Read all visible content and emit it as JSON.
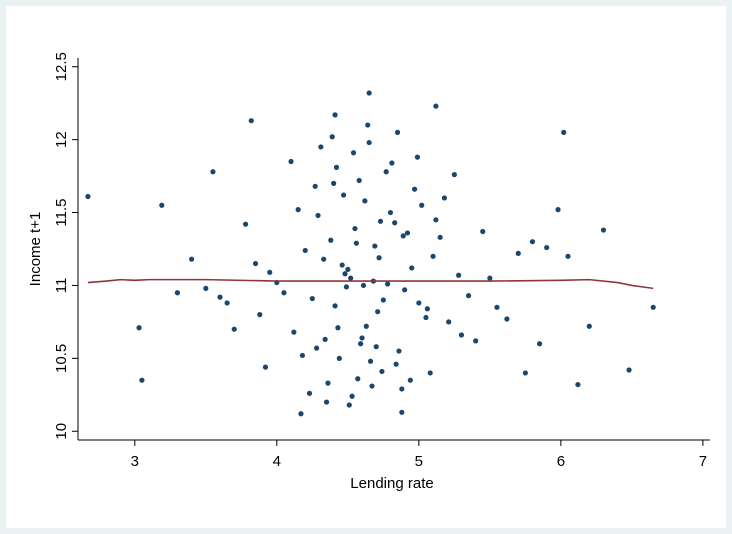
{
  "chart_data": {
    "type": "scatter",
    "xlabel": "Lending rate",
    "ylabel": "Income t+1",
    "xlim": [
      2.6,
      7.05
    ],
    "ylim": [
      9.94,
      12.56
    ],
    "xticks": [
      3,
      4,
      5,
      6,
      7
    ],
    "yticks": [
      10,
      10.5,
      11,
      11.5,
      12,
      12.5
    ],
    "series": [
      {
        "color": "#1a476f",
        "x": [
          4.52,
          4.71,
          4.38,
          4.95,
          4.6,
          4.83,
          4.25,
          5.1,
          4.47,
          4.66,
          4.9,
          4.33,
          5.21,
          4.55,
          4.78,
          4.12,
          5.02,
          4.41,
          4.69,
          4.86,
          3.95,
          5.35,
          4.58,
          4.74,
          4.29,
          5.15,
          4.63,
          4.49,
          4.97,
          4.2,
          5.4,
          4.36,
          4.81,
          4.05,
          5.28,
          4.54,
          4.7,
          3.85,
          5.55,
          4.44,
          4.92,
          4.15,
          5.08,
          4.61,
          4.77,
          3.7,
          5.7,
          4.31,
          4.88,
          4.5,
          5.0,
          4.4,
          4.65,
          3.6,
          5.8,
          4.23,
          5.18,
          4.57,
          4.73,
          4.1,
          5.3,
          4.46,
          4.84,
          3.78,
          5.62,
          4.35,
          4.99,
          4.59,
          4.68,
          3.5,
          5.9,
          4.27,
          5.05,
          4.53,
          4.8,
          4.0,
          5.45,
          4.39,
          4.94,
          3.88,
          4.62,
          4.48,
          4.75,
          4.34,
          5.12,
          4.56,
          4.85,
          4.18,
          5.25,
          4.43,
          4.72,
          3.92,
          5.5,
          4.64,
          4.51,
          4.89,
          4.28,
          5.06,
          4.67,
          4.42,
          2.67,
          3.05,
          3.03,
          3.19,
          6.3,
          6.48,
          6.65,
          6.12,
          4.65,
          5.12,
          4.41,
          3.82,
          6.02,
          4.88,
          4.17,
          3.4,
          3.3,
          5.98,
          6.2,
          5.85,
          3.55,
          3.65,
          5.75,
          6.05
        ],
        "values": [
          11.05,
          10.82,
          11.31,
          11.12,
          10.64,
          11.43,
          10.91,
          11.2,
          11.62,
          10.48,
          10.97,
          11.18,
          10.75,
          11.39,
          11.01,
          10.68,
          11.55,
          10.86,
          11.27,
          10.55,
          11.09,
          10.93,
          11.72,
          10.41,
          11.48,
          11.33,
          10.72,
          10.99,
          11.66,
          11.24,
          10.62,
          10.33,
          11.84,
          10.95,
          11.07,
          11.91,
          10.58,
          11.15,
          10.85,
          10.5,
          11.36,
          11.52,
          10.4,
          11.0,
          11.78,
          10.7,
          11.22,
          11.95,
          10.29,
          11.11,
          10.88,
          11.7,
          11.98,
          10.92,
          11.3,
          10.26,
          11.6,
          10.36,
          11.44,
          11.85,
          10.66,
          11.14,
          10.46,
          11.42,
          10.77,
          10.2,
          11.88,
          10.6,
          11.03,
          10.98,
          11.26,
          11.68,
          10.78,
          10.24,
          11.5,
          11.02,
          11.37,
          12.02,
          10.35,
          10.8,
          11.58,
          11.08,
          10.9,
          10.63,
          11.45,
          11.29,
          12.05,
          10.52,
          11.76,
          10.71,
          11.19,
          10.44,
          11.05,
          12.1,
          10.18,
          11.34,
          10.57,
          10.84,
          10.31,
          11.81,
          11.61,
          10.35,
          10.71,
          11.55,
          11.38,
          10.42,
          10.85,
          10.32,
          12.32,
          12.23,
          12.17,
          12.13,
          12.05,
          10.13,
          10.12,
          11.18,
          10.95,
          11.52,
          10.72,
          10.6,
          11.78,
          10.88,
          10.4,
          11.2
        ]
      },
      {
        "type": "line",
        "color": "#90353b",
        "x": [
          2.67,
          2.8,
          2.9,
          3.0,
          3.1,
          3.5,
          4.0,
          4.5,
          5.0,
          5.5,
          6.0,
          6.2,
          6.4,
          6.5,
          6.65
        ],
        "values": [
          11.02,
          11.03,
          11.04,
          11.035,
          11.04,
          11.04,
          11.03,
          11.03,
          11.03,
          11.03,
          11.035,
          11.04,
          11.02,
          11.0,
          10.98
        ]
      }
    ]
  }
}
